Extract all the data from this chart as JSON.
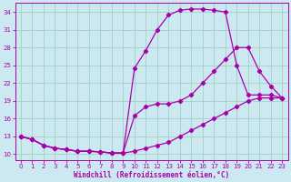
{
  "bg_color": "#cce8f0",
  "line_color": "#aa00aa",
  "grid_color": "#99ccbb",
  "xlabel": "Windchill (Refroidissement éolien,°C)",
  "xlim": [
    -0.5,
    23.5
  ],
  "ylim": [
    9.0,
    35.5
  ],
  "xticks": [
    0,
    1,
    2,
    3,
    4,
    5,
    6,
    7,
    8,
    9,
    10,
    11,
    12,
    13,
    14,
    15,
    16,
    17,
    18,
    19,
    20,
    21,
    22,
    23
  ],
  "yticks": [
    10,
    13,
    16,
    19,
    22,
    25,
    28,
    31,
    34
  ],
  "line1_x": [
    0,
    1,
    2,
    3,
    4,
    5,
    6,
    7,
    8,
    9,
    10,
    11,
    12,
    13,
    14,
    15,
    16,
    17,
    18,
    19,
    20,
    21,
    22,
    23
  ],
  "line1_y": [
    13.0,
    12.5,
    11.5,
    11.0,
    10.8,
    10.5,
    10.5,
    10.4,
    10.2,
    10.2,
    10.5,
    11.0,
    11.5,
    12.0,
    13.0,
    14.0,
    15.0,
    16.0,
    17.0,
    18.0,
    19.0,
    19.5,
    19.5,
    19.5
  ],
  "line2_x": [
    0,
    1,
    2,
    3,
    4,
    5,
    6,
    7,
    8,
    9,
    10,
    11,
    12,
    13,
    14,
    15,
    16,
    17,
    18,
    19,
    20,
    21,
    22,
    23
  ],
  "line2_y": [
    13.0,
    12.5,
    11.5,
    11.0,
    10.8,
    10.5,
    10.5,
    10.4,
    10.2,
    10.2,
    16.5,
    18.0,
    18.5,
    18.5,
    19.0,
    20.0,
    22.0,
    24.0,
    26.0,
    28.0,
    28.0,
    24.0,
    21.5,
    19.5
  ],
  "line3_x": [
    0,
    1,
    2,
    3,
    4,
    5,
    6,
    7,
    8,
    9,
    10,
    11,
    12,
    13,
    14,
    15,
    16,
    17,
    18,
    19,
    20,
    21,
    22,
    23
  ],
  "line3_y": [
    13.0,
    12.5,
    11.5,
    11.0,
    10.8,
    10.5,
    10.5,
    10.4,
    10.2,
    10.2,
    24.5,
    27.5,
    31.0,
    33.5,
    34.3,
    34.5,
    34.5,
    34.3,
    34.0,
    25.0,
    20.0,
    20.0,
    20.0,
    19.5
  ]
}
